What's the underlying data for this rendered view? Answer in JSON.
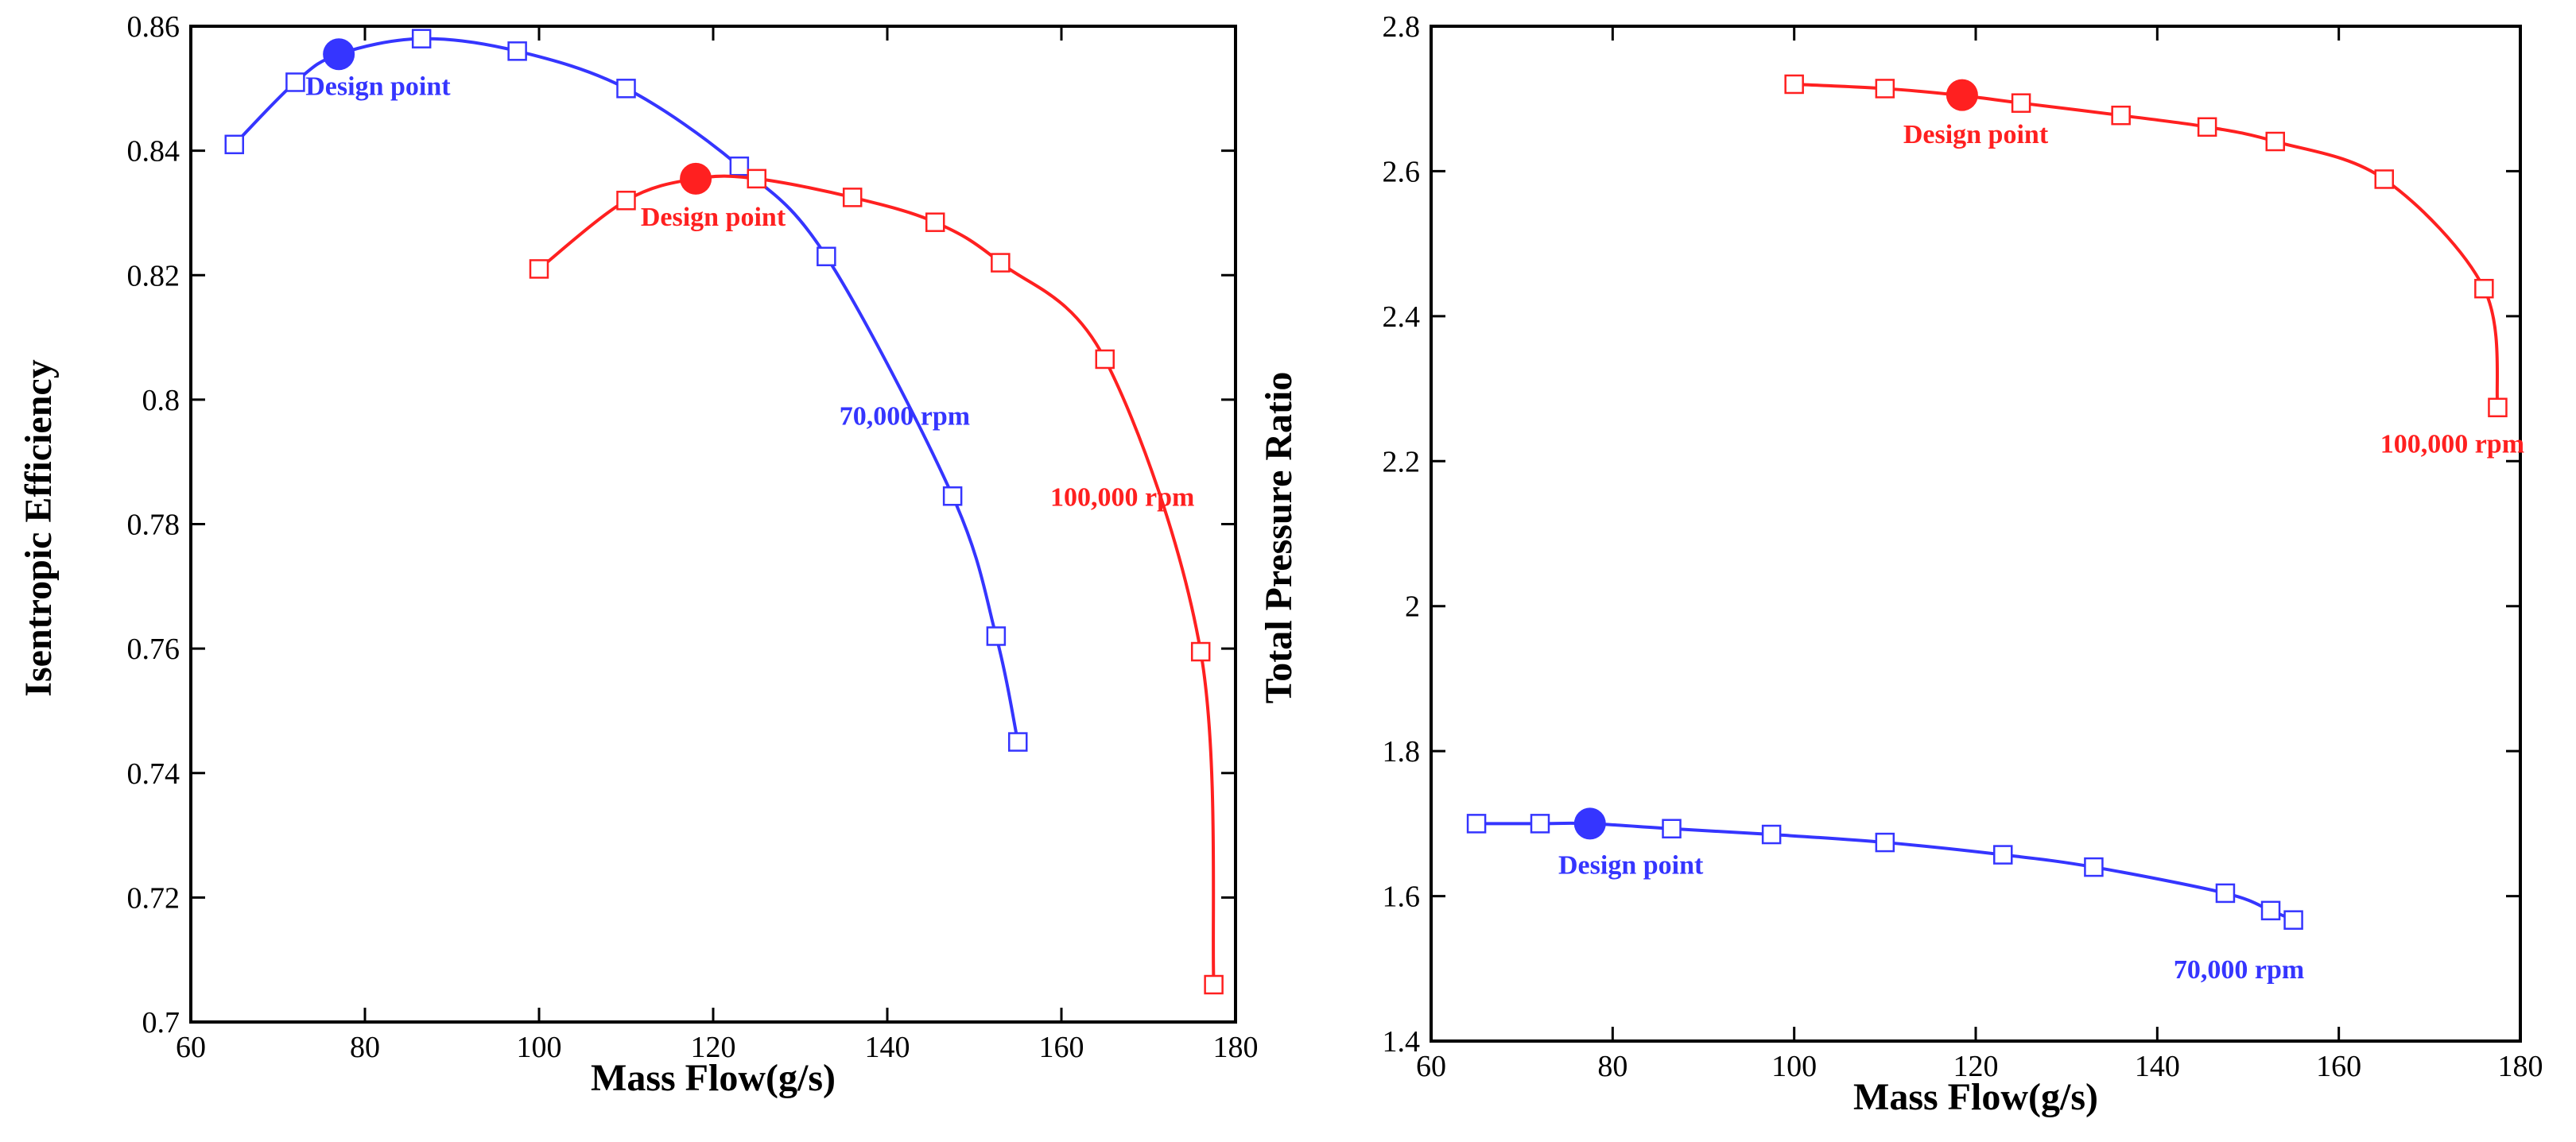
{
  "chart_data": [
    {
      "type": "line",
      "title": "",
      "xlabel": "Mass Flow(g/s)",
      "ylabel": "Isentropic Efficiency",
      "xlim": [
        60,
        180
      ],
      "ylim": [
        0.7,
        0.86
      ],
      "xticks": [
        60,
        80,
        100,
        120,
        140,
        160,
        180
      ],
      "xtick_labels": [
        "60",
        "80",
        "100",
        "120",
        "140",
        "160",
        "180"
      ],
      "yticks": [
        0.7,
        0.72,
        0.74,
        0.76,
        0.78,
        0.8,
        0.82,
        0.84,
        0.86
      ],
      "ytick_labels": [
        "0.7",
        "0.72",
        "0.74",
        "0.76",
        "0.78",
        "0.8",
        "0.82",
        "0.84",
        "0.86"
      ],
      "grid": false,
      "series": [
        {
          "name": "70,000 rpm",
          "color": "#3535ff",
          "x": [
            65,
            72,
            77,
            86.5,
            97.5,
            110,
            123,
            133,
            147.5,
            152.5,
            155
          ],
          "y": [
            0.841,
            0.851,
            0.8555,
            0.858,
            0.856,
            0.85,
            0.8375,
            0.823,
            0.7845,
            0.762,
            0.745
          ],
          "markers": [
            {
              "x": 65,
              "y": 0.841
            },
            {
              "x": 72,
              "y": 0.851
            },
            {
              "x": 86.5,
              "y": 0.858
            },
            {
              "x": 97.5,
              "y": 0.856
            },
            {
              "x": 110,
              "y": 0.85
            },
            {
              "x": 123,
              "y": 0.8375
            },
            {
              "x": 133,
              "y": 0.823
            },
            {
              "x": 147.5,
              "y": 0.7845
            },
            {
              "x": 152.5,
              "y": 0.762
            },
            {
              "x": 155,
              "y": 0.745
            }
          ],
          "design_point": {
            "x": 77,
            "y": 0.8555
          }
        },
        {
          "name": "100,000 rpm",
          "color": "#ff2020",
          "x": [
            100,
            110,
            118,
            125,
            136,
            145.5,
            153,
            165,
            176,
            177.5
          ],
          "y": [
            0.821,
            0.832,
            0.8355,
            0.8355,
            0.8325,
            0.8285,
            0.822,
            0.8065,
            0.7595,
            0.706
          ],
          "markers": [
            {
              "x": 100,
              "y": 0.821
            },
            {
              "x": 110,
              "y": 0.832
            },
            {
              "x": 125,
              "y": 0.8355
            },
            {
              "x": 136,
              "y": 0.8325
            },
            {
              "x": 145.5,
              "y": 0.8285
            },
            {
              "x": 153,
              "y": 0.822
            },
            {
              "x": 165,
              "y": 0.8065
            },
            {
              "x": 176,
              "y": 0.7595
            },
            {
              "x": 177.5,
              "y": 0.706
            }
          ],
          "design_point": {
            "x": 118,
            "y": 0.8355
          }
        }
      ],
      "annotations": [
        {
          "text": "Design point",
          "x": 81.5,
          "y": 0.8505,
          "color": "#3535ff",
          "series": 0
        },
        {
          "text": "Design point",
          "x": 120,
          "y": 0.8295,
          "color": "#ff2020",
          "series": 1
        },
        {
          "text": "70,000 rpm",
          "x": 142,
          "y": 0.7975,
          "color": "#3535ff",
          "series": 0
        },
        {
          "text": "100,000 rpm",
          "x": 167,
          "y": 0.7845,
          "color": "#ff2020",
          "series": 1
        }
      ]
    },
    {
      "type": "line",
      "title": "",
      "xlabel": "Mass Flow(g/s)",
      "ylabel": "Total Pressure Ratio",
      "xlim": [
        60,
        180
      ],
      "ylim": [
        1.4,
        2.8
      ],
      "xticks": [
        60,
        80,
        100,
        120,
        140,
        160,
        180
      ],
      "xtick_labels": [
        "60",
        "80",
        "100",
        "120",
        "140",
        "160",
        "180"
      ],
      "yticks": [
        1.4,
        1.6,
        1.8,
        2,
        2.2,
        2.4,
        2.6,
        2.8
      ],
      "ytick_labels": [
        "1.4",
        "1.6",
        "1.8",
        "2",
        "2.2",
        "2.4",
        "2.6",
        "2.8"
      ],
      "grid": false,
      "series": [
        {
          "name": "100,000 rpm",
          "color": "#ff2020",
          "x": [
            100,
            110,
            118,
            125,
            136,
            145.5,
            153,
            165,
            176,
            177.5
          ],
          "y": [
            2.72,
            2.714,
            2.705,
            2.694,
            2.677,
            2.661,
            2.641,
            2.589,
            2.438,
            2.274
          ],
          "markers": [
            {
              "x": 100,
              "y": 2.72
            },
            {
              "x": 110,
              "y": 2.714
            },
            {
              "x": 125,
              "y": 2.694
            },
            {
              "x": 136,
              "y": 2.677
            },
            {
              "x": 145.5,
              "y": 2.661
            },
            {
              "x": 153,
              "y": 2.641
            },
            {
              "x": 165,
              "y": 2.589
            },
            {
              "x": 176,
              "y": 2.438
            },
            {
              "x": 177.5,
              "y": 2.274
            }
          ],
          "design_point": {
            "x": 118.5,
            "y": 2.705
          }
        },
        {
          "name": "70,000 rpm",
          "color": "#3535ff",
          "x": [
            65,
            72,
            77.5,
            86.5,
            97.5,
            110,
            123,
            133,
            147.5,
            152.5,
            155
          ],
          "y": [
            1.7,
            1.7,
            1.7,
            1.693,
            1.685,
            1.674,
            1.657,
            1.64,
            1.604,
            1.58,
            1.567
          ],
          "markers": [
            {
              "x": 65,
              "y": 1.7
            },
            {
              "x": 72,
              "y": 1.7
            },
            {
              "x": 86.5,
              "y": 1.693
            },
            {
              "x": 97.5,
              "y": 1.685
            },
            {
              "x": 110,
              "y": 1.674
            },
            {
              "x": 123,
              "y": 1.657
            },
            {
              "x": 133,
              "y": 1.64
            },
            {
              "x": 147.5,
              "y": 1.604
            },
            {
              "x": 152.5,
              "y": 1.58
            },
            {
              "x": 155,
              "y": 1.567
            }
          ],
          "design_point": {
            "x": 77.5,
            "y": 1.7
          }
        }
      ],
      "annotations": [
        {
          "text": "Design point",
          "x": 120,
          "y": 2.652,
          "color": "#ff2020",
          "series": 0
        },
        {
          "text": "100,000 rpm",
          "x": 172.5,
          "y": 2.225,
          "color": "#ff2020",
          "series": 0
        },
        {
          "text": "Design point",
          "x": 82,
          "y": 1.644,
          "color": "#3535ff",
          "series": 1
        },
        {
          "text": "70,000 rpm",
          "x": 149,
          "y": 1.5,
          "color": "#3535ff",
          "series": 1
        }
      ]
    }
  ]
}
